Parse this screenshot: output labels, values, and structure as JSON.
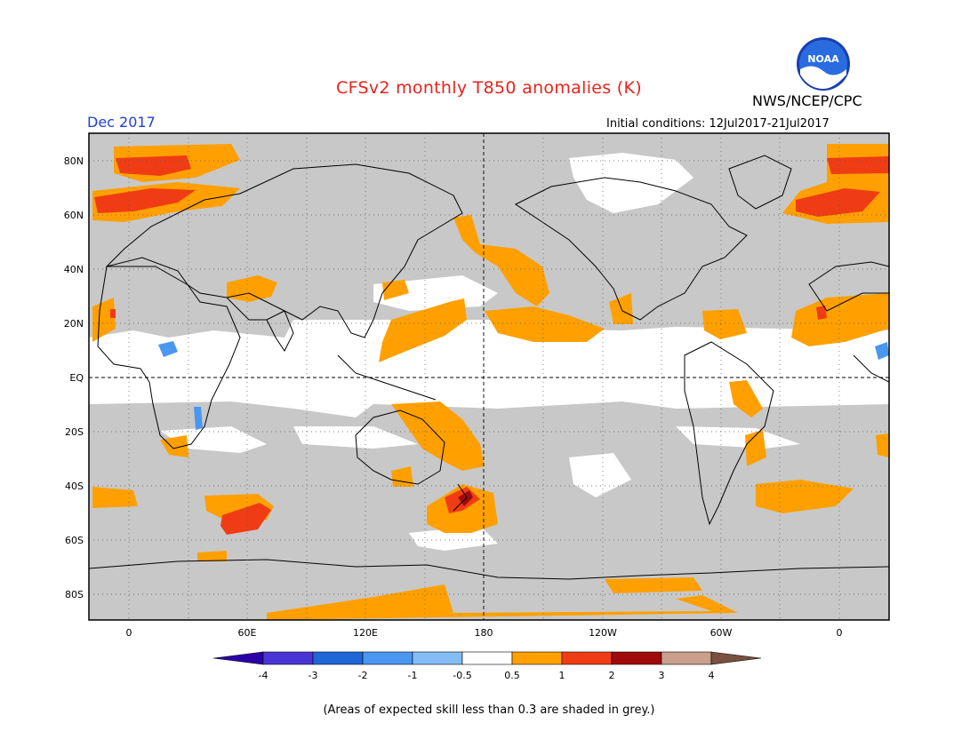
{
  "header": {
    "title": "CFSv2 monthly T850 anomalies (K)",
    "agency": "NWS/NCEP/CPC",
    "valid_month": "Dec 2017",
    "initial_conditions": "Initial conditions: 12Jul2017-21Jul2017"
  },
  "logo": {
    "text": "NOAA"
  },
  "map": {
    "lat_labels": [
      "80N",
      "60N",
      "40N",
      "20N",
      "EQ",
      "20S",
      "40S",
      "60S",
      "80S"
    ],
    "lon_labels": [
      "0",
      "60E",
      "120E",
      "180",
      "120W",
      "60W",
      "0"
    ],
    "colors": {
      "grey_low_skill": "#c8c8c8",
      "orange_0_5_to_1": "#ffa000",
      "red_1_to_2": "#f03c14",
      "darkred_2_to_3": "#a00a0a"
    }
  },
  "colorbar": {
    "labels": [
      "-4",
      "-3",
      "-2",
      "-1",
      "-0.5",
      "0.5",
      "1",
      "2",
      "3",
      "4"
    ],
    "colors": [
      "#2b00a8",
      "#4a36d4",
      "#1f66d6",
      "#4a97f0",
      "#84bdf5",
      "#ffffff",
      "#ffa000",
      "#f03c14",
      "#a00a0a",
      "#c8a08c",
      "#7a5040"
    ]
  },
  "footnote": "(Areas of expected skill less than 0.3 are shaded in grey.)"
}
